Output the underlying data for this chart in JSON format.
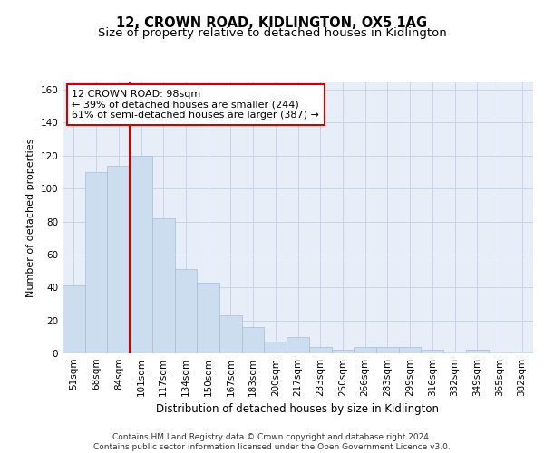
{
  "title1": "12, CROWN ROAD, KIDLINGTON, OX5 1AG",
  "title2": "Size of property relative to detached houses in Kidlington",
  "xlabel": "Distribution of detached houses by size in Kidlington",
  "ylabel": "Number of detached properties",
  "categories": [
    "51sqm",
    "68sqm",
    "84sqm",
    "101sqm",
    "117sqm",
    "134sqm",
    "150sqm",
    "167sqm",
    "183sqm",
    "200sqm",
    "217sqm",
    "233sqm",
    "250sqm",
    "266sqm",
    "283sqm",
    "299sqm",
    "316sqm",
    "332sqm",
    "349sqm",
    "365sqm",
    "382sqm"
  ],
  "values": [
    41,
    110,
    114,
    120,
    82,
    51,
    43,
    23,
    16,
    7,
    10,
    4,
    2,
    4,
    4,
    4,
    2,
    1,
    2,
    1,
    1
  ],
  "bar_color": "#ccddf0",
  "bar_edge_color": "#aabbd8",
  "vline_color": "#cc0000",
  "annotation_text": "12 CROWN ROAD: 98sqm\n← 39% of detached houses are smaller (244)\n61% of semi-detached houses are larger (387) →",
  "annotation_box_color": "#ffffff",
  "annotation_box_edge_color": "#cc0000",
  "ylim": [
    0,
    165
  ],
  "yticks": [
    0,
    20,
    40,
    60,
    80,
    100,
    120,
    140,
    160
  ],
  "grid_color": "#c8d4e8",
  "background_color": "#e8eef8",
  "footer_text": "Contains HM Land Registry data © Crown copyright and database right 2024.\nContains public sector information licensed under the Open Government Licence v3.0.",
  "title1_fontsize": 10.5,
  "title2_fontsize": 9.5,
  "xlabel_fontsize": 8.5,
  "ylabel_fontsize": 8,
  "tick_fontsize": 7.5,
  "annotation_fontsize": 8,
  "footer_fontsize": 6.5
}
